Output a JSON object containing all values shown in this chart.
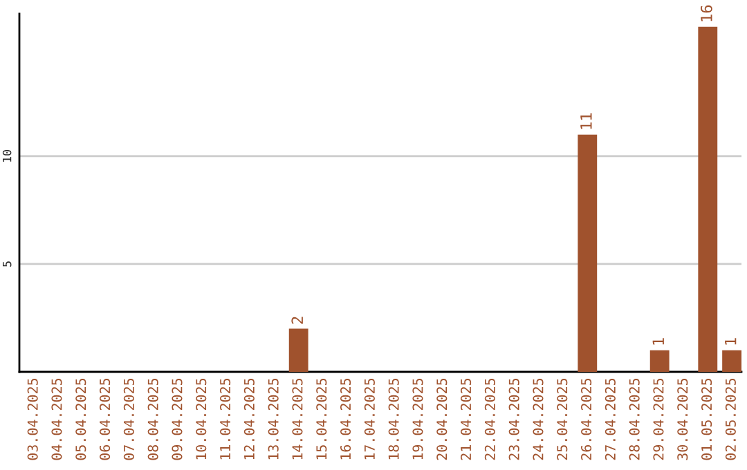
{
  "chart_data": {
    "type": "bar",
    "categories": [
      "03.04.2025",
      "04.04.2025",
      "05.04.2025",
      "06.04.2025",
      "07.04.2025",
      "08.04.2025",
      "09.04.2025",
      "10.04.2025",
      "11.04.2025",
      "12.04.2025",
      "13.04.2025",
      "14.04.2025",
      "15.04.2025",
      "16.04.2025",
      "17.04.2025",
      "18.04.2025",
      "19.04.2025",
      "20.04.2025",
      "21.04.2025",
      "22.04.2025",
      "23.04.2025",
      "24.04.2025",
      "25.04.2025",
      "26.04.2025",
      "27.04.2025",
      "28.04.2025",
      "29.04.2025",
      "30.04.2025",
      "01.05.2025",
      "02.05.2025"
    ],
    "values": [
      0,
      0,
      0,
      0,
      0,
      0,
      0,
      0,
      0,
      0,
      0,
      2,
      0,
      0,
      0,
      0,
      0,
      0,
      0,
      0,
      0,
      0,
      0,
      11,
      0,
      0,
      1,
      0,
      16,
      1
    ],
    "value_labels": [
      null,
      null,
      null,
      null,
      null,
      null,
      null,
      null,
      null,
      null,
      null,
      "2",
      null,
      null,
      null,
      null,
      null,
      null,
      null,
      null,
      null,
      null,
      null,
      "11",
      null,
      null,
      "1",
      null,
      "16",
      "1"
    ],
    "color": "#a0522d",
    "ylim": [
      0,
      16.6
    ],
    "yticks": [
      5,
      10
    ],
    "grid": "y"
  }
}
